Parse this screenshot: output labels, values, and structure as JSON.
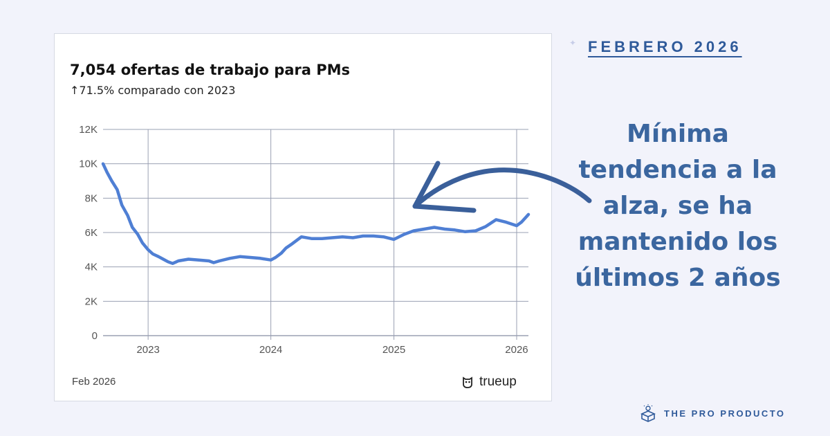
{
  "card": {
    "title": "7,054 ofertas de trabajo para PMs",
    "subtitle": "↑71.5% comparado con 2023",
    "footer_date": "Feb 2026",
    "source": "trueup"
  },
  "header": {
    "date_label": "FEBRERO 2026"
  },
  "callout": {
    "text": "Mínima tendencia a la alza, se ha mantenido los últimos 2 años"
  },
  "brand": {
    "name": "THE PRO PRODUCTO"
  },
  "colors": {
    "line": "#4f7fd4",
    "grid": "#9aa0b3",
    "callout": "#3b669f",
    "arrow": "#3a5f9a"
  },
  "chart_data": {
    "type": "line",
    "x_type": "date",
    "y_ticks": [
      "0",
      "2K",
      "4K",
      "6K",
      "8K",
      "10K",
      "12K"
    ],
    "x_ticks": [
      "2023",
      "2024",
      "2025",
      "2026"
    ],
    "ylim": [
      0,
      12000
    ],
    "xlim": [
      "2022-08-20",
      "2026-02-05"
    ],
    "grid": true,
    "series": [
      {
        "x": [
          "2022-08-20",
          "2022-09-01",
          "2022-09-15",
          "2022-10-01",
          "2022-10-15",
          "2022-11-01",
          "2022-11-15",
          "2022-12-01",
          "2022-12-15",
          "2023-01-01",
          "2023-01-15",
          "2023-02-01",
          "2023-02-15",
          "2023-03-01",
          "2023-03-15",
          "2023-04-01",
          "2023-05-01",
          "2023-06-01",
          "2023-07-01",
          "2023-07-15",
          "2023-08-01",
          "2023-09-01",
          "2023-10-01",
          "2023-11-01",
          "2023-12-01",
          "2024-01-01",
          "2024-01-15",
          "2024-02-01",
          "2024-02-15",
          "2024-03-01",
          "2024-04-01",
          "2024-05-01",
          "2024-06-01",
          "2024-07-01",
          "2024-08-01",
          "2024-09-01",
          "2024-10-01",
          "2024-11-01",
          "2024-12-01",
          "2025-01-01",
          "2025-02-01",
          "2025-03-01",
          "2025-04-01",
          "2025-05-01",
          "2025-06-01",
          "2025-07-01",
          "2025-08-01",
          "2025-09-01",
          "2025-10-01",
          "2025-11-01",
          "2025-12-01",
          "2026-01-01",
          "2026-01-15",
          "2026-02-05"
        ],
        "y": [
          10000,
          9500,
          9000,
          8500,
          7600,
          7000,
          6300,
          5900,
          5400,
          5000,
          4750,
          4600,
          4450,
          4300,
          4200,
          4350,
          4450,
          4400,
          4350,
          4250,
          4350,
          4500,
          4600,
          4550,
          4500,
          4400,
          4550,
          4800,
          5100,
          5300,
          5750,
          5650,
          5650,
          5700,
          5750,
          5700,
          5800,
          5800,
          5750,
          5600,
          5900,
          6100,
          6200,
          6300,
          6200,
          6150,
          6050,
          6100,
          6350,
          6750,
          6600,
          6400,
          6600,
          7050
        ]
      }
    ]
  }
}
